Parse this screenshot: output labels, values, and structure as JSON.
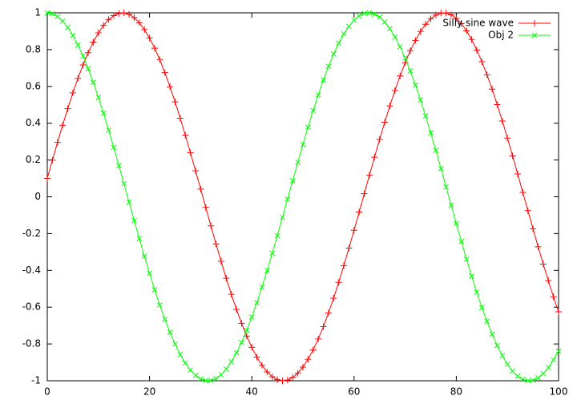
{
  "chart_data": {
    "type": "line",
    "x": [
      0,
      1,
      2,
      3,
      4,
      5,
      6,
      7,
      8,
      9,
      10,
      11,
      12,
      13,
      14,
      15,
      16,
      17,
      18,
      19,
      20,
      21,
      22,
      23,
      24,
      25,
      26,
      27,
      28,
      29,
      30,
      31,
      32,
      33,
      34,
      35,
      36,
      37,
      38,
      39,
      40,
      41,
      42,
      43,
      44,
      45,
      46,
      47,
      48,
      49,
      50,
      51,
      52,
      53,
      54,
      55,
      56,
      57,
      58,
      59,
      60,
      61,
      62,
      63,
      64,
      65,
      66,
      67,
      68,
      69,
      70,
      71,
      72,
      73,
      74,
      75,
      76,
      77,
      78,
      79,
      80,
      81,
      82,
      83,
      84,
      85,
      86,
      87,
      88,
      89,
      90,
      91,
      92,
      93,
      94,
      95,
      96,
      97,
      98,
      99,
      100
    ],
    "series": [
      {
        "name": "Silly sine wave",
        "color": "#ff0000",
        "marker": "plus",
        "values": [
          0.1,
          0.199,
          0.296,
          0.389,
          0.479,
          0.565,
          0.644,
          0.717,
          0.783,
          0.841,
          0.891,
          0.932,
          0.964,
          0.985,
          0.997,
          1.0,
          0.992,
          0.974,
          0.946,
          0.909,
          0.863,
          0.808,
          0.746,
          0.675,
          0.598,
          0.516,
          0.427,
          0.335,
          0.239,
          0.141,
          0.042,
          -0.058,
          -0.158,
          -0.256,
          -0.351,
          -0.443,
          -0.53,
          -0.612,
          -0.688,
          -0.757,
          -0.818,
          -0.872,
          -0.916,
          -0.952,
          -0.978,
          -0.994,
          -1.0,
          -0.996,
          -0.982,
          -0.959,
          -0.926,
          -0.883,
          -0.832,
          -0.773,
          -0.706,
          -0.631,
          -0.551,
          -0.465,
          -0.374,
          -0.279,
          -0.182,
          -0.083,
          0.017,
          0.117,
          0.215,
          0.312,
          0.405,
          0.494,
          0.578,
          0.657,
          0.729,
          0.794,
          0.85,
          0.899,
          0.938,
          0.968,
          0.988,
          0.999,
          0.999,
          0.989,
          0.97,
          0.941,
          0.902,
          0.855,
          0.798,
          0.734,
          0.663,
          0.585,
          0.501,
          0.412,
          0.319,
          0.223,
          0.124,
          0.024,
          -0.075,
          -0.174,
          -0.272,
          -0.366,
          -0.456,
          -0.544,
          -0.625
        ]
      },
      {
        "name": "Obj 2",
        "color": "#00ff00",
        "marker": "cross",
        "values": [
          1.0,
          0.995,
          0.98,
          0.955,
          0.921,
          0.878,
          0.825,
          0.765,
          0.697,
          0.622,
          0.54,
          0.454,
          0.362,
          0.268,
          0.17,
          0.071,
          -0.029,
          -0.129,
          -0.227,
          -0.323,
          -0.416,
          -0.505,
          -0.589,
          -0.666,
          -0.737,
          -0.801,
          -0.857,
          -0.904,
          -0.942,
          -0.971,
          -0.99,
          -0.999,
          -0.998,
          -0.988,
          -0.967,
          -0.936,
          -0.897,
          -0.848,
          -0.791,
          -0.726,
          -0.654,
          -0.575,
          -0.49,
          -0.401,
          -0.307,
          -0.211,
          -0.112,
          -0.012,
          0.087,
          0.187,
          0.284,
          0.378,
          0.469,
          0.554,
          0.635,
          0.709,
          0.776,
          0.835,
          0.886,
          0.927,
          0.96,
          0.983,
          0.997,
          1.0,
          0.993,
          0.977,
          0.95,
          0.914,
          0.869,
          0.815,
          0.754,
          0.684,
          0.608,
          0.526,
          0.439,
          0.347,
          0.252,
          0.154,
          0.054,
          -0.046,
          -0.146,
          -0.243,
          -0.339,
          -0.431,
          -0.519,
          -0.602,
          -0.677,
          -0.747,
          -0.809,
          -0.863,
          -0.911,
          -0.947,
          -0.975,
          -0.992,
          -1.0,
          -0.997,
          -0.984,
          -0.961,
          -0.929,
          -0.887,
          -0.839
        ]
      }
    ],
    "xlim": [
      0,
      100
    ],
    "xticks": [
      0,
      20,
      40,
      60,
      80,
      100
    ],
    "ylim": [
      -1,
      1
    ],
    "yticks": [
      -1,
      -0.8,
      -0.6,
      -0.4,
      -0.2,
      0,
      0.2,
      0.4,
      0.6,
      0.8,
      1
    ],
    "legend": "top right"
  }
}
